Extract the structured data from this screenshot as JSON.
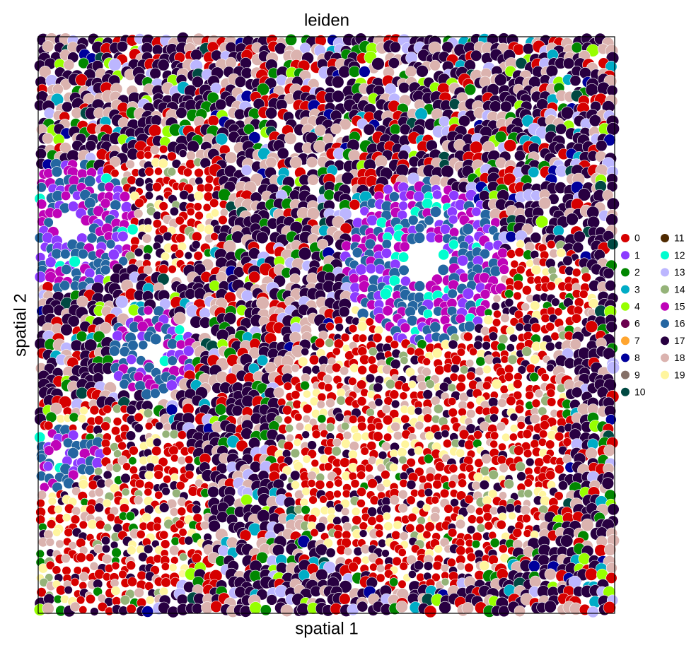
{
  "chart_data": {
    "type": "spatial",
    "title": "leiden",
    "xlabel": "spatial 1",
    "ylabel": "spatial 2",
    "series": [
      {
        "name": "0",
        "color": "#d60000"
      },
      {
        "name": "1",
        "color": "#8c3bff"
      },
      {
        "name": "2",
        "color": "#018700"
      },
      {
        "name": "3",
        "color": "#00acc6"
      },
      {
        "name": "4",
        "color": "#97ff00"
      },
      {
        "name": "6",
        "color": "#6b004f"
      },
      {
        "name": "7",
        "color": "#ffa52f"
      },
      {
        "name": "8",
        "color": "#00009c"
      },
      {
        "name": "9",
        "color": "#857067"
      },
      {
        "name": "10",
        "color": "#004942"
      },
      {
        "name": "11",
        "color": "#4f2a00"
      },
      {
        "name": "12",
        "color": "#00fdcf"
      },
      {
        "name": "13",
        "color": "#bcb6ff"
      },
      {
        "name": "14",
        "color": "#95b379"
      },
      {
        "name": "15",
        "color": "#bf03b8"
      },
      {
        "name": "16",
        "color": "#2466a1"
      },
      {
        "name": "17",
        "color": "#280041"
      },
      {
        "name": "18",
        "color": "#dbb3af"
      },
      {
        "name": "19",
        "color": "#fff59e"
      }
    ]
  }
}
